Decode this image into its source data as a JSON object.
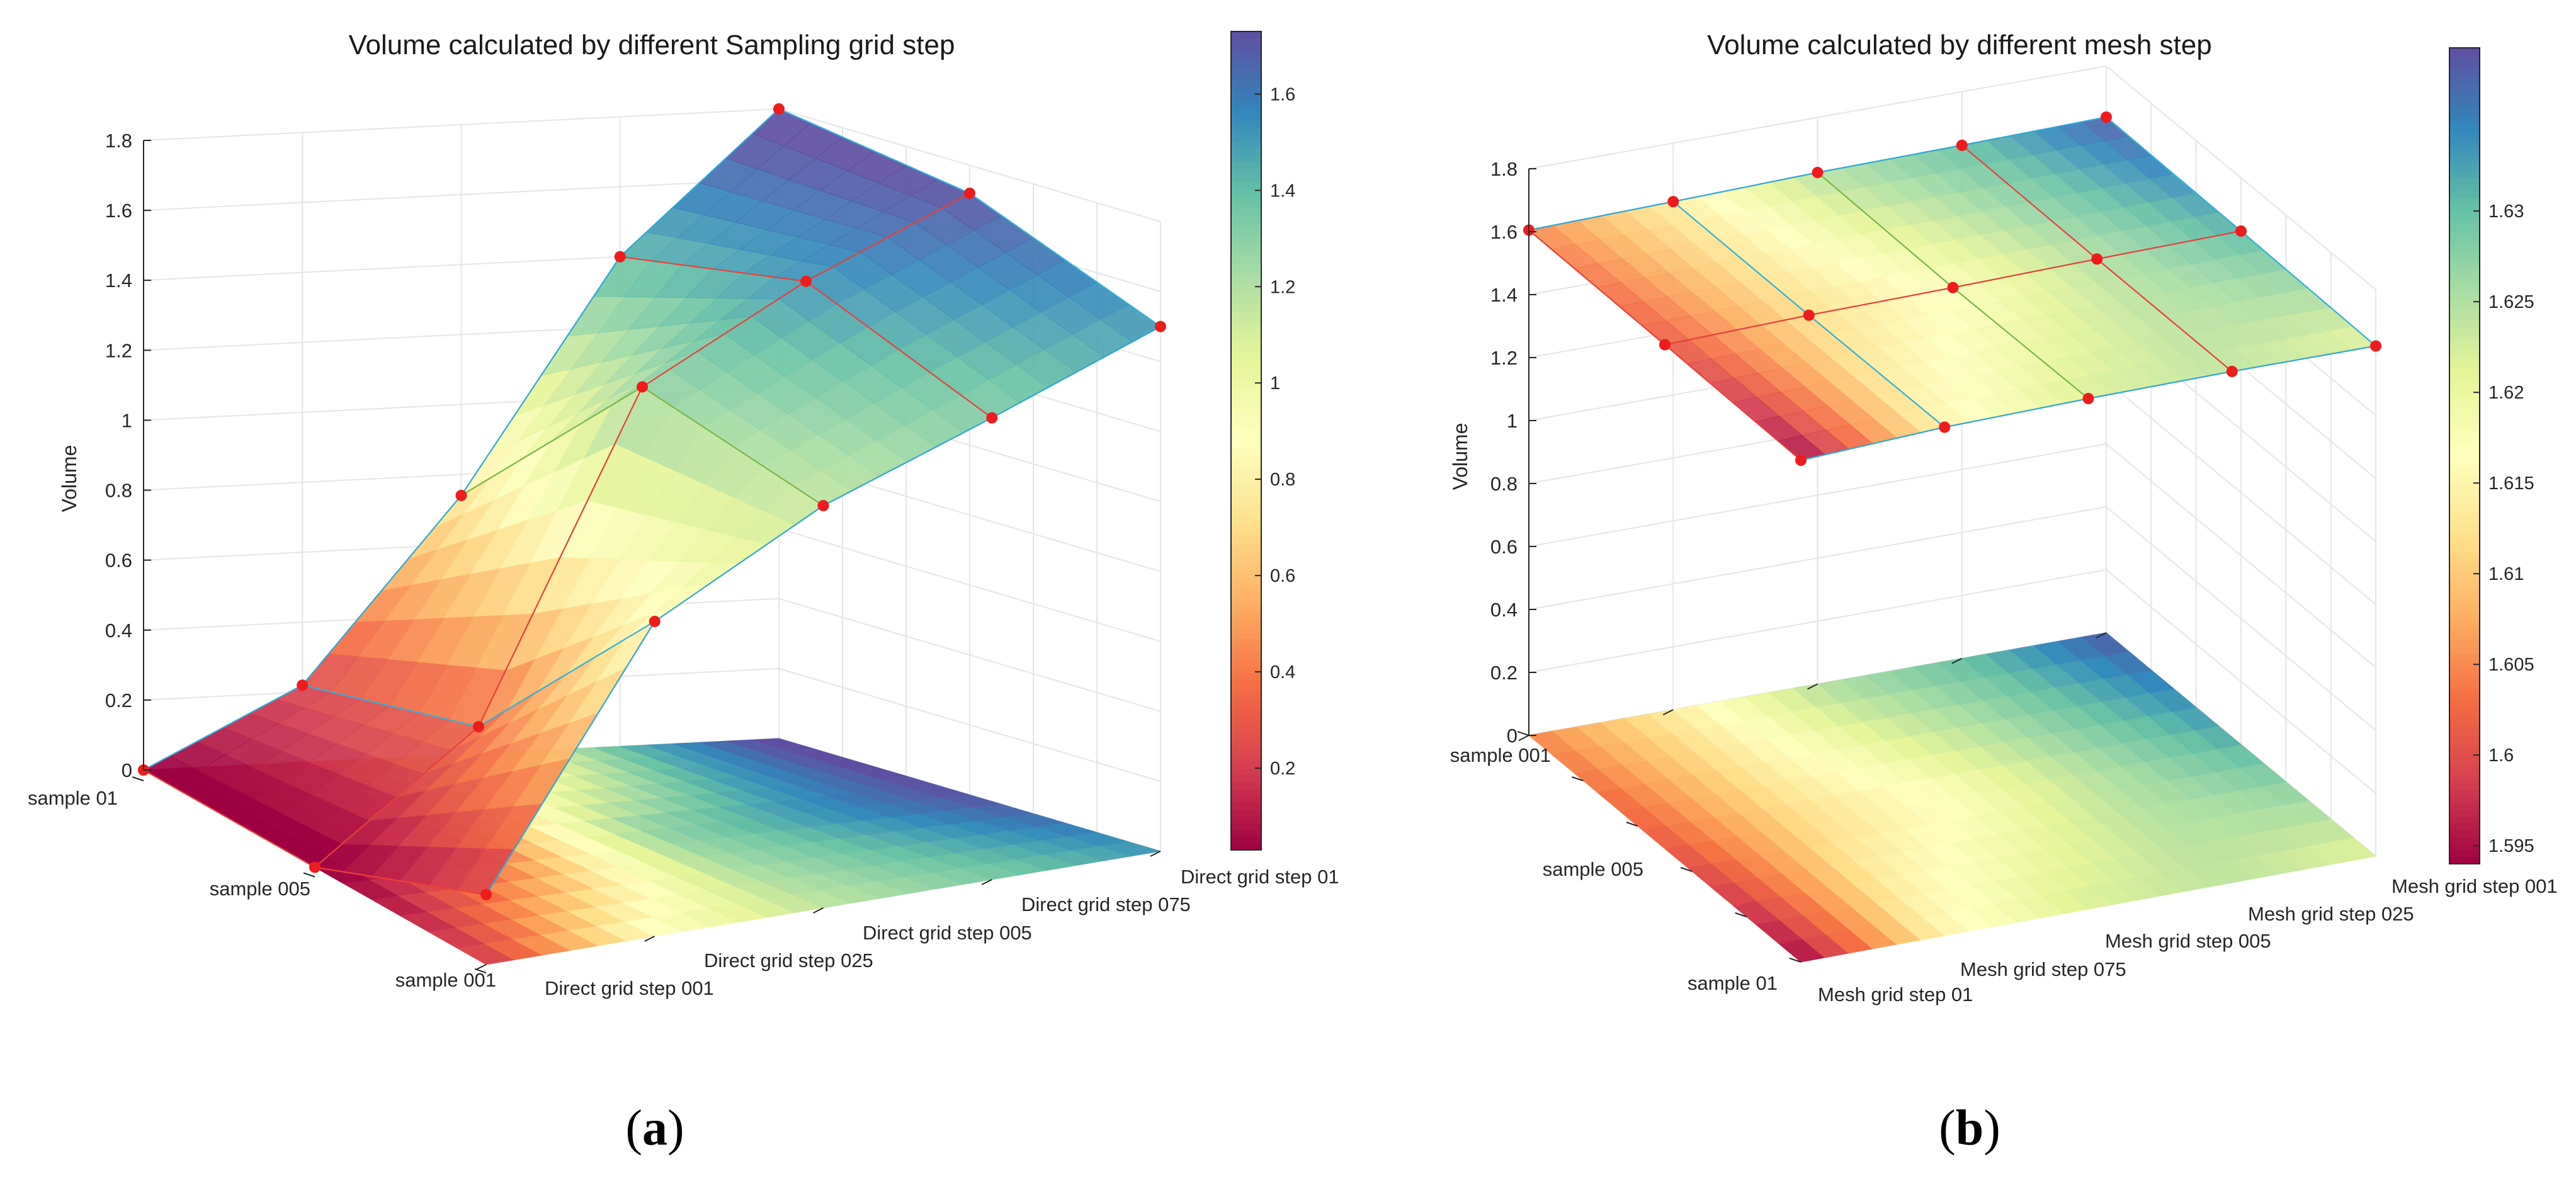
{
  "chart_data": [
    {
      "type": "surface3d",
      "panel_label_open": "(",
      "panel_label": "a",
      "panel_label_close": ")",
      "title": "Volume calculated by different Sampling grid step",
      "zlabel": "Volume",
      "zlim": [
        0,
        1.8
      ],
      "z_ticks": [
        "0",
        "0.2",
        "0.4",
        "0.6",
        "0.8",
        "1",
        "1.2",
        "1.4",
        "1.6",
        "1.8"
      ],
      "x_categories": [
        "Direct grid step 001",
        "Direct grid step 025",
        "Direct grid step 005",
        "Direct grid step 075",
        "Direct grid step 01"
      ],
      "y_categories": [
        "sample 01",
        "sample 005",
        "sample 001"
      ],
      "values": [
        [
          0.0,
          0.22,
          0.74,
          1.4,
          1.8
        ],
        [
          0.0,
          0.35,
          1.27,
          1.52,
          1.72
        ],
        [
          0.2,
          0.9,
          1.15,
          1.32,
          1.5
        ]
      ],
      "colorbar": {
        "range": [
          0.03,
          1.73
        ],
        "ticks": [
          "0.2",
          "0.4",
          "0.6",
          "0.8",
          "1",
          "1.2",
          "1.4",
          "1.6"
        ]
      },
      "colormap": "Spectral"
    },
    {
      "type": "surface3d",
      "panel_label_open": "(",
      "panel_label": "b",
      "panel_label_close": ")",
      "title": "Volume calculated by different mesh step",
      "zlabel": "Volume",
      "zlim": [
        0,
        1.8
      ],
      "z_ticks": [
        "0",
        "0.2",
        "0.4",
        "0.6",
        "0.8",
        "1",
        "1.2",
        "1.4",
        "1.6",
        "1.8"
      ],
      "x_categories": [
        "Mesh grid step 01",
        "Mesh grid step 075",
        "Mesh grid step 005",
        "Mesh grid step 025",
        "Mesh grid step 001"
      ],
      "y_categories": [
        "sample 01",
        "sample 005",
        "sample 001"
      ],
      "values": [
        [
          1.594,
          1.615,
          1.622,
          1.624,
          1.621
        ],
        [
          1.601,
          1.612,
          1.617,
          1.625,
          1.631
        ],
        [
          1.605,
          1.614,
          1.625,
          1.63,
          1.638
        ]
      ],
      "colorbar": {
        "range": [
          1.594,
          1.639
        ],
        "ticks": [
          "1.595",
          "1.6",
          "1.605",
          "1.61",
          "1.615",
          "1.62",
          "1.625",
          "1.63"
        ]
      },
      "colormap": "Spectral"
    }
  ]
}
